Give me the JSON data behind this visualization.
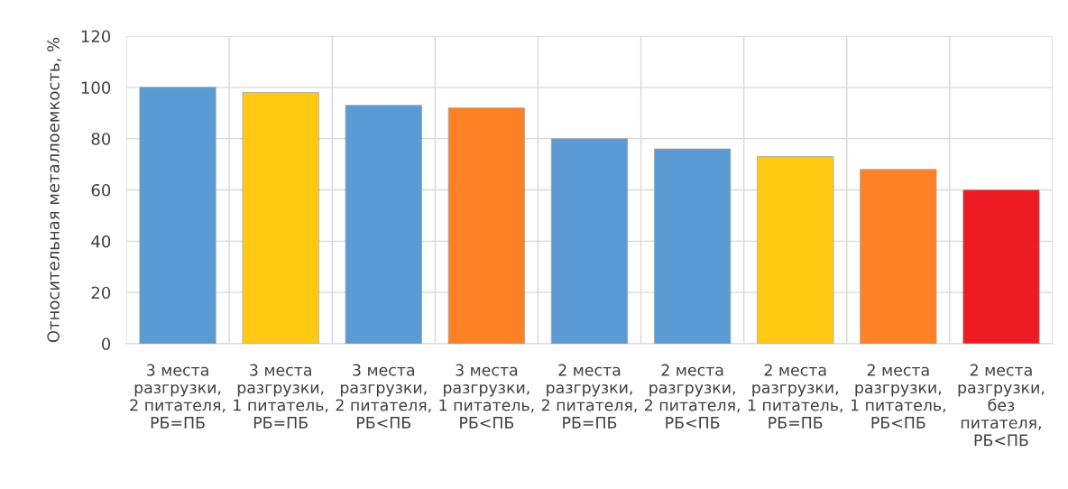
{
  "chart_data": {
    "type": "bar",
    "ylabel": "Относительная металлоемкость, %",
    "categories": [
      "3 места\nразгрузки,\n2 питателя,\nРБ=ПБ",
      "3 места\nразгрузки,\n1 питатель,\nРБ=ПБ",
      "3 места\nразгрузки,\n2 питателя,\nРБ<ПБ",
      "3 места\nразгрузки,\n1 питатель,\nРБ<ПБ",
      "2 места\nразгрузки,\n2 питателя,\nРБ=ПБ",
      "2 места\nразгрузки,\n2 питателя,\nРБ<ПБ",
      "2 места\nразгрузки,\n1 питатель,\nРБ=ПБ",
      "2 места\nразгрузки,\n1 питатель,\nРБ<ПБ",
      "2 места\nразгрузки,\nбез\nпитателя,\nРБ<ПБ"
    ],
    "values": [
      100,
      98,
      93,
      92,
      80,
      76,
      73,
      68,
      60
    ],
    "colors": [
      "#5b9bd5",
      "#ffc914",
      "#5b9bd5",
      "#ff8125",
      "#5b9bd5",
      "#5b9bd5",
      "#ffc914",
      "#ff8125",
      "#ed1c24"
    ],
    "ylim": [
      0,
      120
    ],
    "yticks": [
      0,
      20,
      40,
      60,
      80,
      100,
      120
    ],
    "grid": true
  }
}
